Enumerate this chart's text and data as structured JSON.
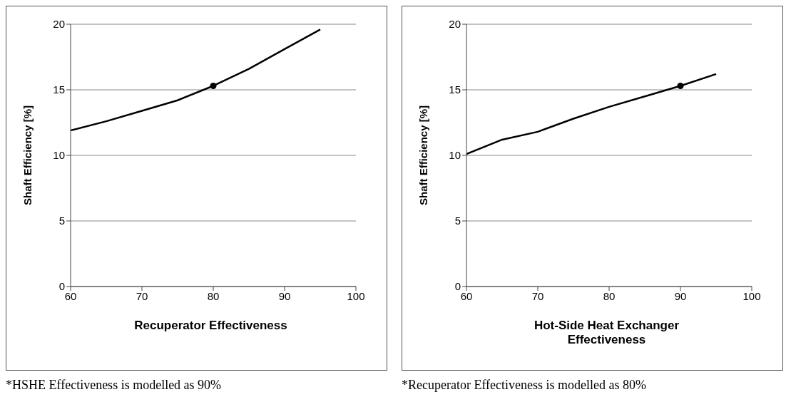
{
  "chart_data": [
    {
      "type": "line",
      "xlabel": "Recuperator Effectiveness",
      "ylabel": "Shaft Efficiency [%]",
      "xlim": [
        60,
        100
      ],
      "xticks": [
        60,
        70,
        80,
        90,
        100
      ],
      "ylim": [
        0,
        20
      ],
      "yticks": [
        0,
        5,
        10,
        15,
        20
      ],
      "grid": "y",
      "annotations": [
        "*HSHE Effectiveness is modelled as 90%"
      ],
      "series": [
        {
          "color": "#000000",
          "x": [
            60,
            65,
            70,
            75,
            80,
            85,
            90,
            95
          ],
          "values": [
            11.9,
            12.6,
            13.4,
            14.2,
            15.3,
            16.6,
            18.1,
            19.6
          ]
        },
        {
          "type": "scatter",
          "color": "#000000",
          "marker": "circle",
          "x": [
            80
          ],
          "values": [
            15.3
          ]
        }
      ]
    },
    {
      "type": "line",
      "xlabel": "Hot-Side Heat Exchanger Effectiveness",
      "ylabel": "Shaft Efficiency [%]",
      "xlim": [
        60,
        100
      ],
      "xticks": [
        60,
        70,
        80,
        90,
        100
      ],
      "ylim": [
        0,
        20
      ],
      "yticks": [
        0,
        5,
        10,
        15,
        20
      ],
      "grid": "y",
      "annotations": [
        "*Recuperator Effectiveness is modelled as 80%"
      ],
      "series": [
        {
          "color": "#000000",
          "x": [
            60,
            65,
            70,
            75,
            80,
            85,
            90,
            95
          ],
          "values": [
            10.1,
            11.2,
            11.8,
            12.8,
            13.7,
            14.5,
            15.3,
            16.2
          ]
        },
        {
          "type": "scatter",
          "color": "#000000",
          "marker": "circle",
          "x": [
            90
          ],
          "values": [
            15.3
          ]
        }
      ]
    }
  ]
}
